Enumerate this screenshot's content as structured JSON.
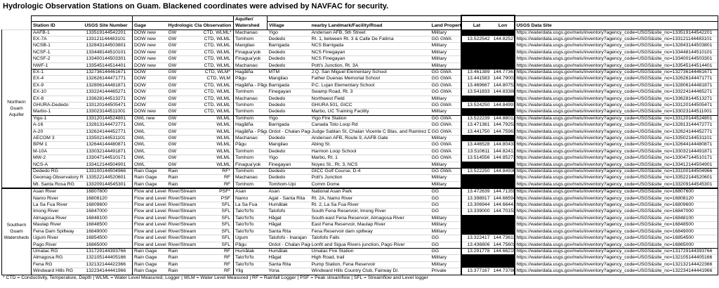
{
  "title": "Hydrologic Observation Stations on Guam. Blackened coordinates were advised by NAVFAC for security.",
  "footnote": "* CTD = Conductivity, Temperature, Depth | WLML = Water Level Measured, Logger | WLM = Water Level Measured | RF = Rainfall Logger | PSF = Peak streamflow | SFL = Streamflow and Level logger",
  "colors": {
    "redaction": "#000000",
    "text": "#000000",
    "background": "#ffffff"
  },
  "table": {
    "url_prefix": "https://waterdata.usgs.gov/nwis/inventory?agency_code=USGS&site_no=",
    "columns": {
      "station": "Station ID",
      "site": "USGS Site Number",
      "gage": "Gage",
      "cls": "Hydrologic Class",
      "obs": "Observation",
      "aquifer_line1": "Aquifer/",
      "aquifer_line2": "Watershed",
      "village": "Village",
      "landmark": "nearby Landmark/Facility/Road",
      "land": "Land Property",
      "lat": "Lat",
      "lon": "Lon",
      "url": "USGS Data Site"
    },
    "groups": [
      {
        "label": "Northern Guam Aquifer",
        "sections": [
          {
            "rows": [
              {
                "id": "AAFB-1",
                "site": "133519144542201",
                "gage": "DOW new",
                "cls": "GW",
                "obs": "CTD, WLML*",
                "aq": "Machanao",
                "village": "Yigo",
                "landmark": "Andersen AFB, 5th Street",
                "land": "Military",
                "red": true
              },
              {
                "id": "EX-7A",
                "site": "133121144483101",
                "gage": "DOW new",
                "cls": "GW",
                "obs": "CTD, WLML",
                "aq": "Tomhom",
                "village": "Dededo",
                "landmark": "Rt. 1, between Rt. 3 & Calle De Fatima",
                "land": "GG GWA",
                "lat": "13.522542",
                "lon": "144.825278"
              },
              {
                "id": "NCSB-1",
                "site": "132843144503801",
                "gage": "DOW new",
                "cls": "GW",
                "obs": "CTD, WLML",
                "aq": "Mangilao",
                "village": "Barrigada",
                "landmark": "NCS Barrigada",
                "land": "Military",
                "red": true
              },
              {
                "id": "NCSF-1",
                "site": "133448144510101",
                "gage": "DOW new",
                "cls": "GW",
                "obs": "CTD, WLML",
                "aq": "Finagua'yok",
                "village": "Dededo",
                "landmark": "NCS Finegayan",
                "land": "Military",
                "red": true
              },
              {
                "id": "NCSF-2",
                "site": "133400144503301",
                "gage": "DOW new",
                "cls": "GW",
                "obs": "CTD, WLML",
                "aq": "Finagua'yok",
                "village": "Dededo",
                "landmark": "NCS Finegayan",
                "land": "Military",
                "red": true
              },
              {
                "id": "NWF-1",
                "site": "133545144514401",
                "gage": "DOW new",
                "cls": "GW",
                "obs": "CTD, WLML",
                "aq": "Machanao",
                "village": "Dededo",
                "landmark": "Pott's Junction, Rt. 3A",
                "land": "Military",
                "red": true
              }
            ]
          },
          {
            "rows": [
              {
                "id": "EX-1",
                "site": "132736144461671",
                "gage": "DOW",
                "cls": "GW",
                "obs": "CTD, WLM*",
                "aq": "Hagåtña",
                "village": "MTM",
                "landmark": "J.Q. San Miguel Elementary School",
                "land": "GG GWA",
                "lat": "13.461389",
                "lon": "144.773611"
              },
              {
                "id": "EX-4",
                "site": "132626144471771",
                "gage": "DOW",
                "cls": "GW",
                "obs": "CTD, WLM",
                "aq": "Pågu",
                "village": "Mangilao",
                "landmark": "Father Duenas Memorial School",
                "land": "GG GWA",
                "lat": "13.441583",
                "lon": "144.790028"
              },
              {
                "id": "EX-9",
                "site": "132806144481871",
                "gage": "DOW",
                "cls": "GW",
                "obs": "CTD, WLML",
                "aq": "Hagåtña - Pågu",
                "village": "Barrigada",
                "landmark": "P.C. Lujan Elementary School",
                "land": "GG GWA",
                "lat": "13.469667",
                "lon": "144.807528"
              },
              {
                "id": "EX-10",
                "site": "133224144465271",
                "gage": "DOW",
                "cls": "GW",
                "obs": "CTD, WLML",
                "aq": "Tomhom",
                "village": "Finegayan",
                "landmark": "Swamp Road, Rt. 3",
                "land": "GG GWA",
                "lat": "13.541833",
                "lon": "144.833889"
              },
              {
                "id": "EX-8",
                "site": "133628144513271",
                "gage": "DOW",
                "cls": "GW",
                "obs": "CTD, WLML",
                "aq": "Machanao",
                "village": "Dededo",
                "landmark": "Northwest Field",
                "land": "Military",
                "red": true
              },
              {
                "id": "GHURA-Dededo",
                "site": "133120144505471",
                "gage": "DOW",
                "cls": "GW",
                "obs": "CTD, WLML",
                "aq": "Tomhom",
                "village": "Dededo",
                "landmark": "GHURA 501, GICC",
                "land": "GG GWA",
                "lat": "13.524250",
                "lon": "144.849917"
              },
              {
                "id": "Marbo-1",
                "site": "133023144511001",
                "gage": "DOW new",
                "cls": "GW",
                "obs": "CTD, WLML",
                "aq": "Tomhom",
                "village": "Dededo",
                "landmark": "Marbo, UC Training Facility",
                "land": "Military",
                "red": true
              }
            ]
          },
          {
            "rows": [
              {
                "id": "Yigo-1",
                "site": "133120144524801",
                "gage": "OWL new",
                "cls": "GW",
                "obs": "WLML",
                "aq": "Tomhom",
                "village": "Yigo",
                "landmark": "Yigo Fire Station",
                "land": "GG GWA",
                "lat": "13.522239",
                "lon": "144.880122"
              },
              {
                "id": "A-16",
                "site": "132813144472771",
                "gage": "OWL",
                "cls": "GW",
                "obs": "WLML",
                "aq": "Hagåtña",
                "village": "Barrigada",
                "landmark": "Canada Toto Loop Rd",
                "land": "GG GWA",
                "lat": "13.471361",
                "lon": "144.792528"
              },
              {
                "id": "A-20",
                "site": "132624144452771",
                "gage": "OWL",
                "cls": "GW",
                "obs": "WLML",
                "aq": "Hagåtña - Pågu",
                "village": "Ordot - Chalan Pago",
                "landmark": "Judge Sablan St, Chalan Vicente C Blas, and Ramirez Dr.",
                "land": "GG GWA",
                "lat": "13.441750",
                "lon": "144.759639"
              },
              {
                "id": "AECOM 3",
                "site": "133502144531101",
                "gage": "OWL",
                "cls": "GW",
                "obs": "WLML",
                "aq": "Machanao",
                "village": "Dededo",
                "landmark": "Andersen AFB, Route 9, AAFB Gate",
                "land": "Military",
                "red": true
              },
              {
                "id": "BPM 1",
                "site": "132644144480871",
                "gage": "OWL",
                "cls": "GW",
                "obs": "WLML",
                "aq": "Pågu",
                "village": "Mangilao",
                "landmark": "Abing St.",
                "land": "GG GWA",
                "lat": "13.446528",
                "lon": "144.804333"
              },
              {
                "id": "M-10A",
                "site": "133032144491871",
                "gage": "OWL",
                "cls": "GW",
                "obs": "WLML",
                "aq": "Tomhom",
                "village": "Dededo",
                "landmark": "Harmon Loop School",
                "land": "GG GWA",
                "lat": "13.510611",
                "lon": "144.824139"
              },
              {
                "id": "MW-2",
                "site": "133047144510171",
                "gage": "OWL",
                "cls": "GW",
                "obs": "WLML",
                "aq": "Tomhom",
                "village": "Yigo",
                "landmark": "Marbo, Rt. 1",
                "land": "GG GWA",
                "lat": "13.514556",
                "lon": "144.852722"
              },
              {
                "id": "NCS-A",
                "site": "133412144504901",
                "gage": "OWL",
                "cls": "GW",
                "obs": "WLML",
                "aq": "Finagua'yok",
                "village": "Finegayan",
                "landmark": "Noyes St., Rt. 3, NCS",
                "land": "Military",
                "red": true
              }
            ]
          },
          {
            "rows": [
              {
                "id": "Dededo RG",
                "site": "133100144504966",
                "gage": "Rain Gage",
                "cls": "Rain",
                "obs": "RF*",
                "aq": "Tomhom",
                "village": "Dededo",
                "landmark": "GICC Golf Course, D-4",
                "land": "GG GWA",
                "lat": "13.522250",
                "lon": "144.849306"
              },
              {
                "id": "Geomag Observatory RG",
                "site": "133522144520601",
                "gage": "Rain Gage",
                "cls": "Rain",
                "obs": "RF",
                "aq": "Machanao",
                "village": "Dededo",
                "landmark": "Pott's Junction",
                "land": "Military",
                "red": true
              },
              {
                "id": "Mt. Santa Rosa RG",
                "site": "133209144545301",
                "gage": "Rain Gage",
                "cls": "Rain",
                "obs": "RF",
                "aq": "Tomhom",
                "village": "Tomhom-Upi",
                "landmark": "Comm Dome",
                "land": "Military",
                "red": true
              }
            ]
          }
        ]
      },
      {
        "label": "Southern Guam Watersheds",
        "sections": [
          {
            "rows": [
              {
                "id": "Asan River",
                "site": "16807600",
                "gage": "Flow and Level",
                "cls": "River/Stream",
                "obs": "PSF*",
                "aq": "Asan",
                "village": "Asan",
                "landmark": "National Asan Park",
                "land": "GG",
                "lat": "13.472639",
                "lon": "144.713556"
              },
              {
                "id": "Namo River",
                "site": "16808120",
                "gage": "Flow and Level",
                "cls": "River/Stream",
                "obs": "PSF",
                "aq": "Namo",
                "village": "Agat - Santa Rita",
                "landmark": "Rt. 2A, Namo River",
                "land": "GG",
                "lat": "13.398917",
                "lon": "144.665944"
              },
              {
                "id": "La Sa Fua River",
                "site": "16809600",
                "gage": "Flow and Level",
                "cls": "River/Stream",
                "obs": "SFL",
                "aq": "La Sa Fua",
                "village": "Humåtak",
                "landmark": "Rt. 2, La Sa Fua River",
                "land": "GG",
                "lat": "13.306944",
                "lon": "144.664417"
              },
              {
                "id": "Imong River",
                "site": "16847000",
                "gage": "Flow and Level",
                "cls": "River/Stream",
                "obs": "SFL",
                "aq": "Talo'fo'fo",
                "village": "Talofofo",
                "landmark": "South Fena Reservoir, Imong River",
                "land": "GG",
                "lat": "13.339000",
                "lon": "144.701528"
              },
              {
                "id": "Almagosa River",
                "site": "16848100",
                "gage": "Flow and Level",
                "cls": "River/Stream",
                "obs": "SFL",
                "aq": "Talo'fo'fo",
                "village": "Hågat",
                "landmark": "South-east Fena Reservoir, Almagosa River",
                "land": "Military",
                "red": true
              },
              {
                "id": "Maulap River",
                "site": "16848500",
                "gage": "Flow and Level",
                "cls": "River/Stream",
                "obs": "SFL",
                "aq": "Talo'fo'fo",
                "village": "Hågat",
                "landmark": "East Fena Reservoir, Maulap River",
                "land": "Military",
                "red": true
              },
              {
                "id": "Fena Dam Spillway",
                "site": "16849000",
                "gage": "Flow and Level",
                "cls": "River/Stream",
                "obs": "SFL",
                "aq": "Talo'fo'fo",
                "village": "Santa Rita",
                "landmark": "Fena Reservoir dam spillway",
                "land": "Military",
                "red": true
              },
              {
                "id": "Ugum River",
                "site": "16854500",
                "gage": "Flow and Level",
                "cls": "River/Stream",
                "obs": "SFL",
                "aq": "Ugum",
                "village": "Talofofo - Inarajan",
                "landmark": "Talofofo Falls",
                "land": "GG",
                "lat": "13.322417",
                "lon": "144.736139"
              },
              {
                "id": "Pago River",
                "site": "16865000",
                "gage": "Flow and Level",
                "cls": "River/Stream",
                "obs": "SFL",
                "aq": "Pågu",
                "village": "Ordot - Chalan Pago",
                "landmark": "Lonfit and Sigua Rivers junction, Pago River",
                "land": "GG",
                "lat": "13.436806",
                "lon": "144.756028"
              }
            ]
          },
          {
            "rows": [
              {
                "id": "Umatac RG",
                "site": "131729144393766",
                "gage": "Rain Gage",
                "cls": "Rain",
                "obs": "RF",
                "aq": "Humåtak",
                "village": "Humåtak",
                "landmark": "Umatac Fire Station",
                "land": "GG",
                "lat": "13.291778",
                "lon": "144.662194"
              },
              {
                "id": "Almagosa RG",
                "site": "132105144405166",
                "gage": "Rain Gage",
                "cls": "Rain",
                "obs": "RF",
                "aq": "Talo'fo'fo",
                "village": "Hågat",
                "landmark": "High Road, trail",
                "land": "Military",
                "red": true
              },
              {
                "id": "Fena RG",
                "site": "132132144422366",
                "gage": "Rain Gage",
                "cls": "Rain",
                "obs": "RF",
                "aq": "Talo'fo'fo",
                "village": "Santa Rita",
                "landmark": "Pump Station, Fena Reservoir",
                "land": "Military",
                "red": true
              },
              {
                "id": "Windward Hills RG",
                "site": "132234144441966",
                "gage": "Rain Gage",
                "cls": "Rain",
                "obs": "RF",
                "aq": "Ylig",
                "village": "Yona",
                "landmark": "Windward Hills Country Club, Fairway Dr.",
                "land": "Private",
                "lat": "13.377167",
                "lon": "144.737806"
              }
            ]
          }
        ]
      }
    ]
  }
}
